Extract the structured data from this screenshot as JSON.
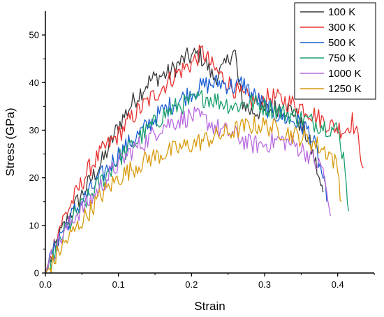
{
  "chart_data": {
    "type": "line",
    "xlabel": "Strain",
    "ylabel": "Stress (GPa)",
    "xlim": [
      0,
      0.45
    ],
    "ylim": [
      0,
      55
    ],
    "xticks": [
      0.0,
      0.1,
      0.2,
      0.3,
      0.4
    ],
    "xtick_labels": [
      "0.0",
      "0.1",
      "0.2",
      "0.3",
      "0.4"
    ],
    "yticks": [
      0,
      10,
      20,
      30,
      40,
      50
    ],
    "ytick_labels": [
      "0",
      "10",
      "20",
      "30",
      "40",
      "50"
    ],
    "grid": false,
    "legend_position": "top-right",
    "series": [
      {
        "name": "100 K",
        "color": "#3a3a3a",
        "x": [
          0,
          0.01,
          0.02,
          0.04,
          0.06,
          0.08,
          0.1,
          0.12,
          0.14,
          0.15,
          0.17,
          0.19,
          0.21,
          0.22,
          0.23,
          0.245,
          0.255,
          0.26,
          0.265,
          0.27,
          0.28,
          0.3,
          0.32,
          0.34,
          0.36,
          0.37,
          0.375,
          0.38
        ],
        "y": [
          0,
          4,
          8,
          14,
          19,
          24,
          31,
          36,
          40,
          41,
          42,
          45,
          46,
          44,
          41,
          43,
          46.5,
          46,
          39,
          36,
          34,
          34,
          35,
          34,
          28,
          23,
          19,
          17
        ]
      },
      {
        "name": "300 K",
        "color": "#e8312f",
        "x": [
          0,
          0.01,
          0.02,
          0.04,
          0.06,
          0.08,
          0.1,
          0.12,
          0.14,
          0.16,
          0.18,
          0.2,
          0.215,
          0.23,
          0.25,
          0.27,
          0.29,
          0.31,
          0.33,
          0.35,
          0.37,
          0.39,
          0.41,
          0.42,
          0.43,
          0.435
        ],
        "y": [
          0,
          5,
          10,
          16,
          22,
          26,
          29,
          33,
          36,
          39,
          42,
          44,
          46.5,
          43,
          40,
          37,
          36,
          37,
          36,
          35,
          33,
          31,
          30,
          32,
          27,
          22
        ]
      },
      {
        "name": "500 K",
        "color": "#1a5fd4",
        "x": [
          0,
          0.01,
          0.02,
          0.04,
          0.06,
          0.08,
          0.1,
          0.12,
          0.14,
          0.16,
          0.18,
          0.2,
          0.22,
          0.24,
          0.26,
          0.27,
          0.28,
          0.3,
          0.32,
          0.34,
          0.36,
          0.37,
          0.38,
          0.385
        ],
        "y": [
          0,
          4,
          8,
          13,
          17,
          21,
          25,
          28,
          31,
          34,
          36,
          38,
          39.5,
          40,
          39,
          40,
          38,
          35,
          33,
          32,
          30,
          26,
          20,
          15
        ]
      },
      {
        "name": "750 K",
        "color": "#1a9f6c",
        "x": [
          0,
          0.01,
          0.02,
          0.04,
          0.06,
          0.08,
          0.1,
          0.12,
          0.14,
          0.16,
          0.18,
          0.2,
          0.22,
          0.24,
          0.26,
          0.28,
          0.3,
          0.32,
          0.34,
          0.36,
          0.38,
          0.4,
          0.41,
          0.415
        ],
        "y": [
          0,
          3,
          7,
          12,
          16,
          20,
          24,
          27,
          30,
          33,
          35,
          36,
          37,
          36,
          35,
          36,
          35,
          34,
          33,
          32,
          31,
          30,
          23,
          13
        ]
      },
      {
        "name": "1000 K",
        "color": "#b86ae0",
        "x": [
          0,
          0.01,
          0.02,
          0.04,
          0.06,
          0.08,
          0.1,
          0.12,
          0.14,
          0.16,
          0.18,
          0.2,
          0.22,
          0.24,
          0.26,
          0.28,
          0.3,
          0.32,
          0.34,
          0.36,
          0.37,
          0.38,
          0.385,
          0.39
        ],
        "y": [
          0,
          4,
          7,
          12,
          15,
          19,
          23,
          26,
          28,
          31,
          32,
          33,
          32,
          30,
          29,
          27,
          27,
          28,
          27,
          25,
          23,
          22,
          16,
          12
        ]
      },
      {
        "name": "1250 K",
        "color": "#d89a0c",
        "x": [
          0,
          0.01,
          0.02,
          0.04,
          0.06,
          0.08,
          0.1,
          0.12,
          0.14,
          0.16,
          0.18,
          0.2,
          0.22,
          0.24,
          0.26,
          0.28,
          0.3,
          0.32,
          0.34,
          0.36,
          0.38,
          0.39,
          0.4,
          0.405
        ],
        "y": [
          0,
          2,
          5,
          9,
          13,
          17,
          20,
          22,
          24,
          25,
          26,
          27,
          28,
          29,
          30,
          31,
          31,
          30,
          29,
          28,
          26,
          25,
          22,
          15
        ]
      }
    ]
  }
}
